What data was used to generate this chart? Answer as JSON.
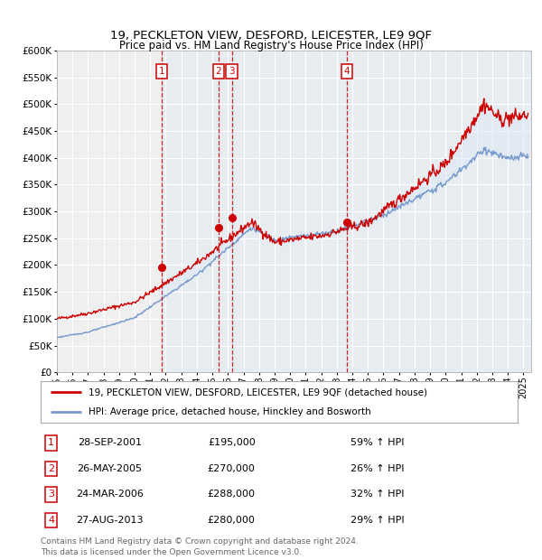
{
  "title": "19, PECKLETON VIEW, DESFORD, LEICESTER, LE9 9QF",
  "subtitle": "Price paid vs. HM Land Registry's House Price Index (HPI)",
  "ylim": [
    0,
    600000
  ],
  "yticks": [
    0,
    50000,
    100000,
    150000,
    200000,
    250000,
    300000,
    350000,
    400000,
    450000,
    500000,
    550000,
    600000
  ],
  "xlim_start": 1995.0,
  "xlim_end": 2025.5,
  "xticks": [
    1995,
    1996,
    1997,
    1998,
    1999,
    2000,
    2001,
    2002,
    2003,
    2004,
    2005,
    2006,
    2007,
    2008,
    2009,
    2010,
    2011,
    2012,
    2013,
    2014,
    2015,
    2016,
    2017,
    2018,
    2019,
    2020,
    2021,
    2022,
    2023,
    2024,
    2025
  ],
  "background_color": "#ffffff",
  "plot_bg_color": "#efefef",
  "grid_color": "#ffffff",
  "property_color": "#cc0000",
  "hpi_color": "#7799cc",
  "highlight_color": "#dde8f5",
  "transactions": [
    {
      "num": 1,
      "date": "28-SEP-2001",
      "price": 195000,
      "pct": "59%",
      "year": 2001.75
    },
    {
      "num": 2,
      "date": "26-MAY-2005",
      "price": 270000,
      "pct": "26%",
      "year": 2005.4
    },
    {
      "num": 3,
      "date": "24-MAR-2006",
      "price": 288000,
      "pct": "32%",
      "year": 2006.25
    },
    {
      "num": 4,
      "date": "27-AUG-2013",
      "price": 280000,
      "pct": "29%",
      "year": 2013.65
    }
  ],
  "legend_property_label": "19, PECKLETON VIEW, DESFORD, LEICESTER, LE9 9QF (detached house)",
  "legend_hpi_label": "HPI: Average price, detached house, Hinckley and Bosworth",
  "footer1": "Contains HM Land Registry data © Crown copyright and database right 2024.",
  "footer2": "This data is licensed under the Open Government Licence v3.0."
}
